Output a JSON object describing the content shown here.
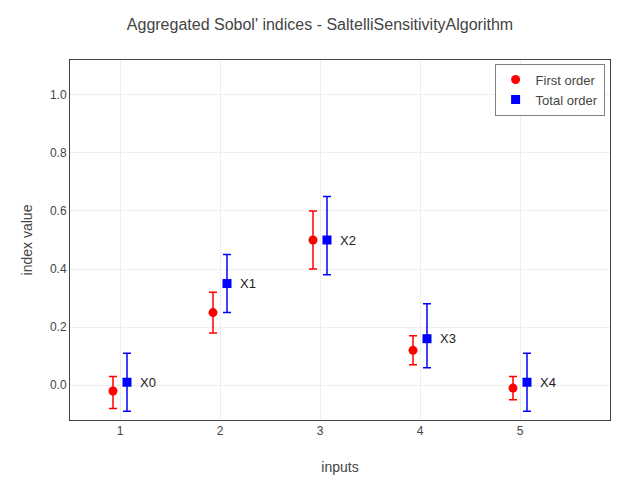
{
  "chart_data": {
    "type": "scatter",
    "title": "Aggregated Sobol' indices - SaltelliSensitivityAlgorithm",
    "x_label": "inputs",
    "y_label": "index value",
    "x": [
      1,
      2,
      3,
      4,
      5
    ],
    "series": [
      {
        "name": "First order",
        "color": "red",
        "marker": "circle",
        "values": [
          -0.02,
          0.25,
          0.5,
          0.12,
          -0.01
        ],
        "error_low": [
          0.06,
          0.07,
          0.1,
          0.05,
          0.04
        ],
        "error_high": [
          0.05,
          0.07,
          0.1,
          0.05,
          0.04
        ]
      },
      {
        "name": "Total order",
        "color": "blue",
        "marker": "square",
        "values": [
          0.01,
          0.35,
          0.5,
          0.16,
          0.01
        ],
        "error_low": [
          0.1,
          0.1,
          0.12,
          0.1,
          0.1
        ],
        "error_high": [
          0.1,
          0.1,
          0.15,
          0.12,
          0.1
        ]
      }
    ],
    "annotations": [
      {
        "text": "X0",
        "x": 1,
        "y": 0.01
      },
      {
        "text": "X1",
        "x": 2,
        "y": 0.35
      },
      {
        "text": "X2",
        "x": 3,
        "y": 0.5
      },
      {
        "text": "X3",
        "x": 4,
        "y": 0.16
      },
      {
        "text": "X4",
        "x": 5,
        "y": 0.01
      }
    ],
    "xlim": [
      0.5,
      5.9
    ],
    "xticks": [
      1,
      2,
      3,
      4,
      5
    ],
    "ylim": [
      -0.12,
      1.12
    ],
    "yticks": [
      {
        "value": 0,
        "label": "0.0"
      },
      0.2,
      0.4,
      0.6,
      0.8,
      {
        "value": 1,
        "label": "1.0"
      }
    ],
    "grid": true,
    "legend": "upper right"
  }
}
